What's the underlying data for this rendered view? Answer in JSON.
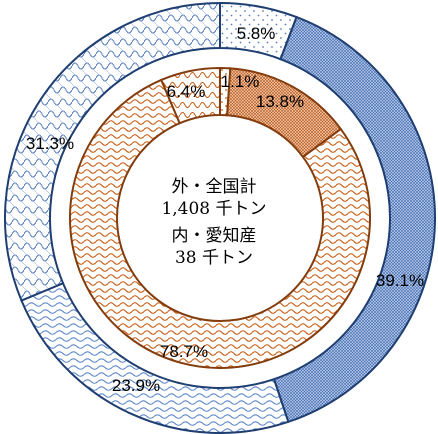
{
  "chart_data": {
    "type": "pie",
    "variant": "nested-donut",
    "title": "",
    "center_text": {
      "outer_line1": "外・全国計",
      "outer_line2": "1,408 千トン",
      "inner_line1": "内・愛知産",
      "inner_line2": "38 千トン"
    },
    "rings": [
      {
        "ring": "outer",
        "total": "1,408 千トン",
        "slices": [
          {
            "value": 5.8,
            "label": "5.8%",
            "fill": "dots",
            "color": "#5b7fb5"
          },
          {
            "value": 39.1,
            "label": "39.1%",
            "fill": "fine-grid",
            "color": "#2f5597"
          },
          {
            "value": 23.9,
            "label": "23.9%",
            "fill": "waves",
            "color": "#5b86c8"
          },
          {
            "value": 31.3,
            "label": "31.3%",
            "fill": "scales",
            "color": "#4a74b8"
          }
        ]
      },
      {
        "ring": "inner",
        "total": "38 千トン",
        "slices": [
          {
            "value": 1.1,
            "label": "1.1%",
            "fill": "dots",
            "color": "#c55a11"
          },
          {
            "value": 13.8,
            "label": "13.8%",
            "fill": "fine-grid",
            "color": "#c55a11"
          },
          {
            "value": 78.7,
            "label": "78.7%",
            "fill": "waves",
            "color": "#c55a11"
          },
          {
            "value": 6.4,
            "label": "6.4%",
            "fill": "scales",
            "color": "#c55a11"
          }
        ]
      }
    ],
    "legend": "none",
    "colors": {
      "outer_edge": "#1f3e72",
      "inner_edge": "#843c0c",
      "background": "#ffffff"
    }
  }
}
